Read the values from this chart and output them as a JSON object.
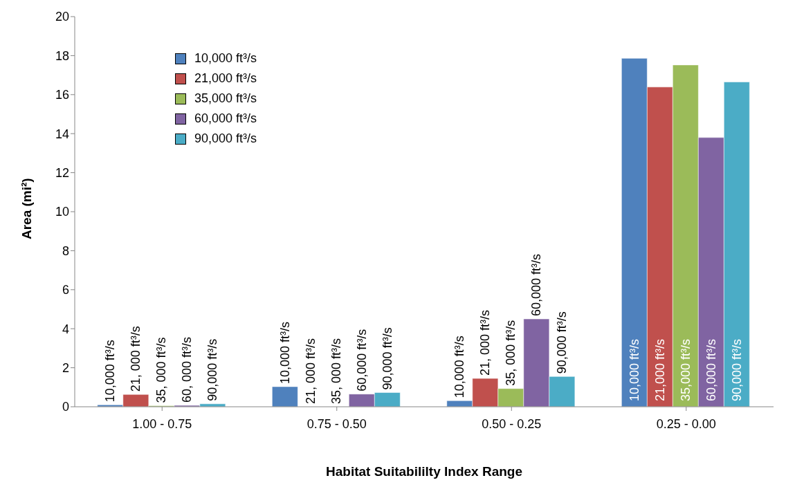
{
  "chart_data": {
    "type": "bar",
    "xlabel": "Habitat Suitabililty Index Range",
    "ylabel": "Area (mi²)",
    "categories": [
      "1.00 - 0.75",
      "0.75 - 0.50",
      "0.50 - 0.25",
      "0.25 - 0.00"
    ],
    "ylim": [
      0,
      20
    ],
    "yticks": [
      0,
      2,
      4,
      6,
      8,
      10,
      12,
      14,
      16,
      18,
      20
    ],
    "grid": false,
    "legend": "top left",
    "series": [
      {
        "name": "10,000 ft³/s",
        "color": "#4f81bd",
        "values": [
          0.1,
          1.03,
          0.31,
          17.86
        ]
      },
      {
        "name": "21,000 ft³/s",
        "color": "#c0504d",
        "values": [
          0.63,
          0,
          1.45,
          16.39
        ]
      },
      {
        "name": "35,000 ft³/s",
        "color": "#9bbb59",
        "values": [
          0.05,
          0,
          0.93,
          17.52
        ]
      },
      {
        "name": "60,000 ft³/s",
        "color": "#8064a2",
        "values": [
          0.07,
          0.65,
          4.5,
          13.8
        ]
      },
      {
        "name": "90,000 ft³/s",
        "color": "#4bacc6",
        "values": [
          0.15,
          0.73,
          1.55,
          16.65
        ]
      }
    ],
    "annotations": [
      "10,000 ft³/s",
      "21, 000 ft³/s",
      "35, 000 ft³/s",
      "60, 000 ft³/s",
      "90,000 ft³/s",
      "10,000 ft³/s",
      "21, 000 ft³/s",
      "35, 000 ft³/s",
      "60,000 ft³/s",
      "90,000 ft³/s",
      "10,000 ft³/s",
      "21, 000 ft³/s",
      "35, 000 ft³/s",
      "60,000 ft³/s",
      "90,000 ft³/s",
      "10,000 ft³/s",
      "21,000 ft³/s",
      "35,000 ft³/s",
      "60,000 ft³/s",
      "90,000 ft³/s"
    ]
  }
}
